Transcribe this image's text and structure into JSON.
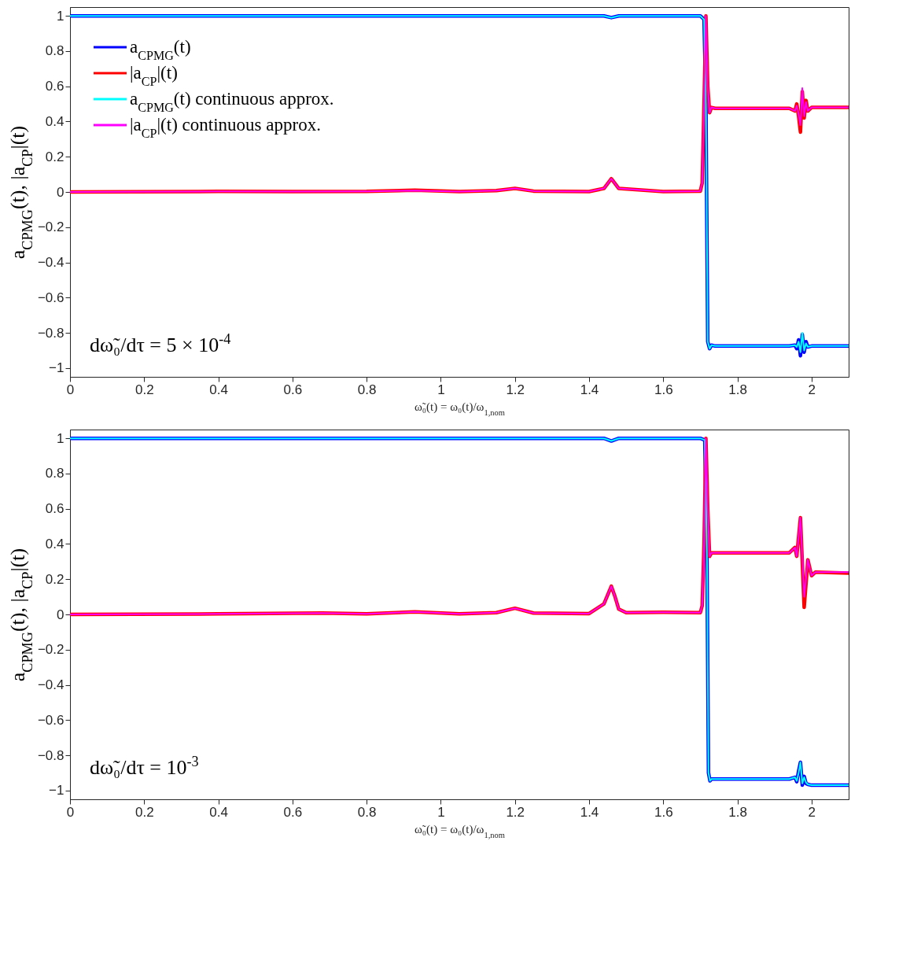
{
  "chart_data": [
    {
      "type": "line",
      "xlabel": "ω̃₀(t) = ω₀(t)/ω$_{1,nom}$",
      "ylabel": "a$_{CPMG}$(t), |a$_{CP}$|(t)",
      "annotations": [
        "dω̃₀/dτ = 5 × 10$^{-4}$"
      ],
      "xlim": [
        0,
        2.1
      ],
      "ylim": [
        -1.05,
        1.05
      ],
      "xticks": [
        0,
        0.2,
        0.4,
        0.6,
        0.8,
        1,
        1.2,
        1.4,
        1.6,
        1.8,
        2
      ],
      "yticks": [
        -1,
        -0.8,
        -0.6,
        -0.4,
        -0.2,
        0,
        0.2,
        0.4,
        0.6,
        0.8,
        1
      ],
      "grid": false,
      "legend": "top left",
      "series": [
        {
          "name": "a$_{CPMG}$(t)",
          "color": "#0000ff",
          "x": [
            0,
            0.5,
            1.0,
            1.44,
            1.46,
            1.48,
            1.7,
            1.71,
            1.715,
            1.72,
            1.725,
            1.73,
            1.74,
            1.94,
            1.955,
            1.96,
            1.965,
            1.97,
            1.975,
            1.98,
            1.985,
            1.99,
            2.0,
            2.1
          ],
          "values": [
            1,
            1,
            1,
            1,
            0.99,
            1,
            1,
            0.98,
            0.5,
            -0.85,
            -0.89,
            -0.87,
            -0.875,
            -0.875,
            -0.87,
            -0.89,
            -0.84,
            -0.93,
            -0.81,
            -0.91,
            -0.85,
            -0.88,
            -0.875,
            -0.875
          ]
        },
        {
          "name": "|a$_{CP}$|(t)",
          "color": "#ff0000",
          "x": [
            0,
            0.4,
            0.6,
            0.8,
            0.93,
            1.05,
            1.15,
            1.2,
            1.25,
            1.4,
            1.44,
            1.46,
            1.48,
            1.6,
            1.7,
            1.705,
            1.71,
            1.715,
            1.72,
            1.725,
            1.73,
            1.74,
            1.94,
            1.955,
            1.96,
            1.965,
            1.97,
            1.975,
            1.98,
            1.985,
            1.99,
            2.0,
            2.1
          ],
          "values": [
            0,
            0.003,
            0.002,
            0.003,
            0.01,
            0.002,
            0.008,
            0.02,
            0.005,
            0.002,
            0.02,
            0.075,
            0.02,
            0.002,
            0.005,
            0.05,
            0.5,
            1.0,
            0.6,
            0.45,
            0.48,
            0.475,
            0.475,
            0.46,
            0.5,
            0.43,
            0.34,
            0.57,
            0.42,
            0.52,
            0.46,
            0.48,
            0.48
          ]
        },
        {
          "name": "a$_{CPMG}$(t) continuous approx.",
          "color": "#00ffff",
          "x": [
            0,
            0.5,
            1.0,
            1.44,
            1.46,
            1.48,
            1.7,
            1.71,
            1.715,
            1.72,
            1.725,
            1.73,
            1.74,
            1.94,
            1.955,
            1.96,
            1.965,
            1.97,
            1.975,
            1.98,
            1.985,
            1.99,
            2.0,
            2.1
          ],
          "values": [
            1,
            1,
            1,
            1,
            0.99,
            1,
            1,
            0.98,
            0.5,
            -0.85,
            -0.89,
            -0.87,
            -0.875,
            -0.875,
            -0.87,
            -0.88,
            -0.85,
            -0.91,
            -0.8,
            -0.9,
            -0.86,
            -0.88,
            -0.875,
            -0.875
          ]
        },
        {
          "name": "|a$_{CP}$|(t) continuous approx.",
          "color": "#ff00ff",
          "x": [
            0,
            0.4,
            0.6,
            0.8,
            0.93,
            1.05,
            1.15,
            1.2,
            1.25,
            1.4,
            1.44,
            1.46,
            1.48,
            1.6,
            1.7,
            1.705,
            1.71,
            1.715,
            1.72,
            1.725,
            1.73,
            1.74,
            1.94,
            1.955,
            1.96,
            1.965,
            1.97,
            1.975,
            1.98,
            1.985,
            1.99,
            2.0,
            2.1
          ],
          "values": [
            0,
            0.003,
            0.002,
            0.003,
            0.008,
            0.002,
            0.008,
            0.02,
            0.005,
            0.002,
            0.02,
            0.075,
            0.02,
            0.002,
            0.005,
            0.05,
            0.5,
            1.0,
            0.6,
            0.45,
            0.48,
            0.475,
            0.475,
            0.46,
            0.49,
            0.44,
            0.38,
            0.59,
            0.43,
            0.51,
            0.46,
            0.48,
            0.48
          ]
        }
      ]
    },
    {
      "type": "line",
      "xlabel": "ω̃₀(t) = ω₀(t)/ω$_{1,nom}$",
      "ylabel": "a$_{CPMG}$(t), |a$_{CP}$|(t)",
      "annotations": [
        "dω̃₀/dτ = 10$^{-3}$"
      ],
      "xlim": [
        0,
        2.1
      ],
      "ylim": [
        -1.05,
        1.05
      ],
      "xticks": [
        0,
        0.2,
        0.4,
        0.6,
        0.8,
        1,
        1.2,
        1.4,
        1.6,
        1.8,
        2
      ],
      "yticks": [
        -1,
        -0.8,
        -0.6,
        -0.4,
        -0.2,
        0,
        0.2,
        0.4,
        0.6,
        0.8,
        1
      ],
      "grid": false,
      "legend": false,
      "series": [
        {
          "color": "#0000ff",
          "x": [
            0,
            0.5,
            1.0,
            1.44,
            1.46,
            1.48,
            1.7,
            1.712,
            1.718,
            1.722,
            1.726,
            1.73,
            1.75,
            1.94,
            1.955,
            1.96,
            1.965,
            1.97,
            1.975,
            1.98,
            1.985,
            1.99,
            2.0,
            2.1
          ],
          "values": [
            1,
            1,
            1,
            1,
            0.985,
            1,
            1,
            0.99,
            0.3,
            -0.9,
            -0.945,
            -0.935,
            -0.935,
            -0.935,
            -0.925,
            -0.95,
            -0.89,
            -0.84,
            -0.97,
            -0.92,
            -0.96,
            -0.965,
            -0.97,
            -0.97
          ]
        },
        {
          "color": "#ff0000",
          "x": [
            0,
            0.4,
            0.68,
            0.8,
            0.93,
            1.05,
            1.15,
            1.2,
            1.25,
            1.4,
            1.44,
            1.46,
            1.47,
            1.48,
            1.5,
            1.6,
            1.7,
            1.705,
            1.71,
            1.715,
            1.72,
            1.725,
            1.73,
            1.75,
            1.94,
            1.955,
            1.96,
            1.97,
            1.98,
            1.99,
            2.0,
            2.01,
            2.1
          ],
          "values": [
            0,
            0.003,
            0.008,
            0.003,
            0.015,
            0.003,
            0.01,
            0.035,
            0.008,
            0.005,
            0.06,
            0.16,
            0.1,
            0.03,
            0.01,
            0.012,
            0.01,
            0.05,
            0.4,
            1.0,
            0.6,
            0.33,
            0.35,
            0.35,
            0.35,
            0.38,
            0.33,
            0.55,
            0.04,
            0.31,
            0.22,
            0.24,
            0.235
          ]
        },
        {
          "color": "#00ffff",
          "x": [
            0,
            0.5,
            1.0,
            1.44,
            1.46,
            1.48,
            1.7,
            1.712,
            1.718,
            1.722,
            1.726,
            1.73,
            1.75,
            1.94,
            1.955,
            1.96,
            1.965,
            1.97,
            1.975,
            1.98,
            1.985,
            1.99,
            2.0,
            2.1
          ],
          "values": [
            1,
            1,
            1,
            1,
            0.985,
            1,
            1,
            0.99,
            0.3,
            -0.9,
            -0.945,
            -0.935,
            -0.935,
            -0.935,
            -0.925,
            -0.945,
            -0.9,
            -0.84,
            -0.96,
            -0.925,
            -0.955,
            -0.965,
            -0.97,
            -0.97
          ]
        },
        {
          "color": "#ff00ff",
          "x": [
            0,
            0.4,
            0.68,
            0.8,
            0.93,
            1.05,
            1.15,
            1.2,
            1.25,
            1.4,
            1.44,
            1.46,
            1.47,
            1.48,
            1.5,
            1.6,
            1.7,
            1.705,
            1.71,
            1.715,
            1.72,
            1.725,
            1.73,
            1.75,
            1.94,
            1.955,
            1.96,
            1.97,
            1.98,
            1.99,
            2.0,
            2.01,
            2.1
          ],
          "values": [
            0,
            0.003,
            0.008,
            0.003,
            0.015,
            0.003,
            0.01,
            0.035,
            0.008,
            0.005,
            0.06,
            0.16,
            0.1,
            0.03,
            0.01,
            0.012,
            0.01,
            0.05,
            0.4,
            1.0,
            0.6,
            0.33,
            0.35,
            0.35,
            0.35,
            0.38,
            0.33,
            0.55,
            0.1,
            0.31,
            0.22,
            0.24,
            0.24
          ]
        }
      ]
    }
  ]
}
